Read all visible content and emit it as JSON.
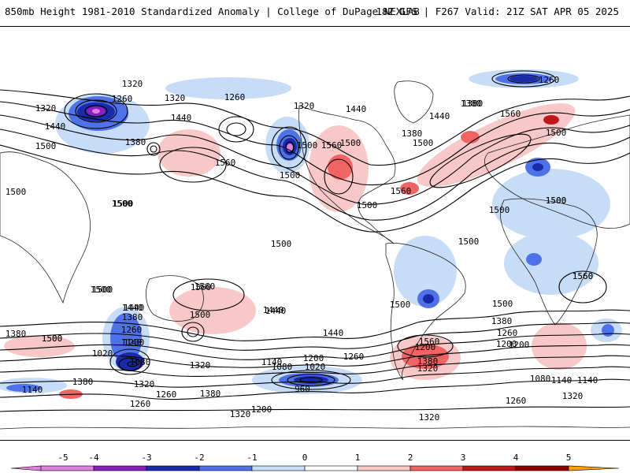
{
  "header": {
    "left_title": "850mb Height 1981-2010 Standardized Anomaly | College of DuPage NEXLAB",
    "right_title": "18Z GFS | F267 Valid: 21Z SAT APR 05 2025"
  },
  "colors": {
    "neg5": "#e07fe0",
    "neg4": "#8a1fc0",
    "neg3": "#1a2aa8",
    "neg2": "#4f72e8",
    "neg1": "#c6dcf7",
    "pos1": "#f8c8c8",
    "pos2": "#f06464",
    "pos3": "#c01818",
    "pos4": "#8a0000",
    "pos5": "#ffa000",
    "coast": "#222222",
    "contour": "#000000"
  },
  "colorbar": {
    "ticks": [
      "-5",
      "-4",
      "-3",
      "-2",
      "-1",
      "0",
      "1",
      "2",
      "3",
      "4",
      "5"
    ]
  },
  "contour_labels": [
    "1320",
    "1320",
    "1260",
    "1440",
    "1500",
    "1380",
    "1320",
    "1260",
    "1320",
    "1440",
    "1380",
    "1500",
    "1560",
    "1500",
    "1380",
    "1260",
    "1500",
    "1440",
    "1380",
    "1560",
    "1500",
    "1440",
    "1560",
    "1500",
    "1500",
    "1560",
    "1500",
    "1500",
    "1500",
    "1500",
    "1500",
    "1500",
    "1500",
    "1560",
    "1500",
    "1440",
    "1560",
    "1380",
    "1320",
    "1440",
    "1380",
    "1260",
    "1200",
    "1140",
    "1080",
    "1020",
    "960",
    "1200",
    "1140",
    "1080",
    "1020",
    "1260",
    "1200",
    "1320",
    "1380",
    "1500",
    "1440",
    "1560",
    "1500",
    "1380",
    "1440",
    "1260",
    "1320",
    "1140",
    "1320",
    "1260",
    "1200",
    "1140",
    "1260",
    "1320",
    "1380",
    "1200",
    "1080",
    "1140",
    "1260",
    "1200",
    "1320",
    "1500",
    "1560",
    "1440",
    "1380",
    "1500",
    "1500",
    "1500",
    "1560",
    "1500"
  ]
}
